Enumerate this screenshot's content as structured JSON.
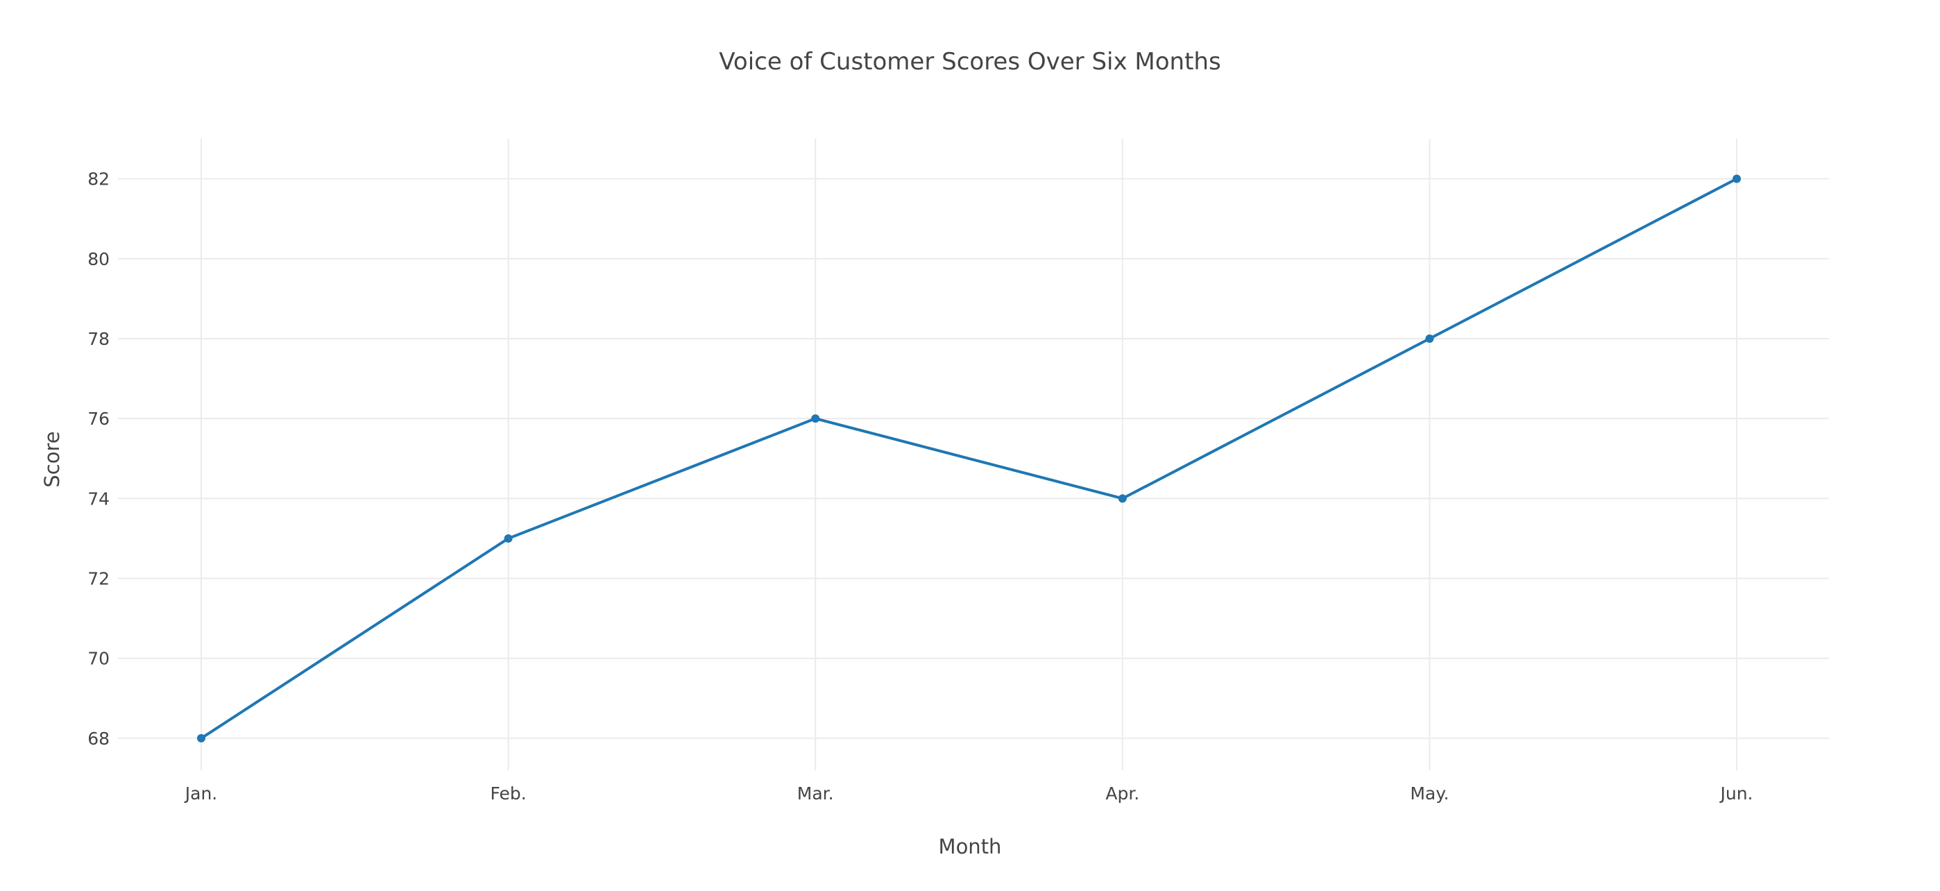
{
  "chart_data": {
    "type": "line",
    "title": "Voice of Customer Scores Over Six Months",
    "xlabel": "Month",
    "ylabel": "Score",
    "categories": [
      "Jan.",
      "Feb.",
      "Mar.",
      "Apr.",
      "May.",
      "Jun."
    ],
    "series": [
      {
        "values": [
          68,
          73,
          76,
          74,
          78,
          82
        ],
        "color": "#1f77b4"
      }
    ],
    "ylim": [
      67.2,
      83
    ],
    "yticks": [
      68,
      70,
      72,
      74,
      76,
      78,
      80,
      82
    ],
    "grid": true,
    "legend": "none",
    "markers": true
  }
}
